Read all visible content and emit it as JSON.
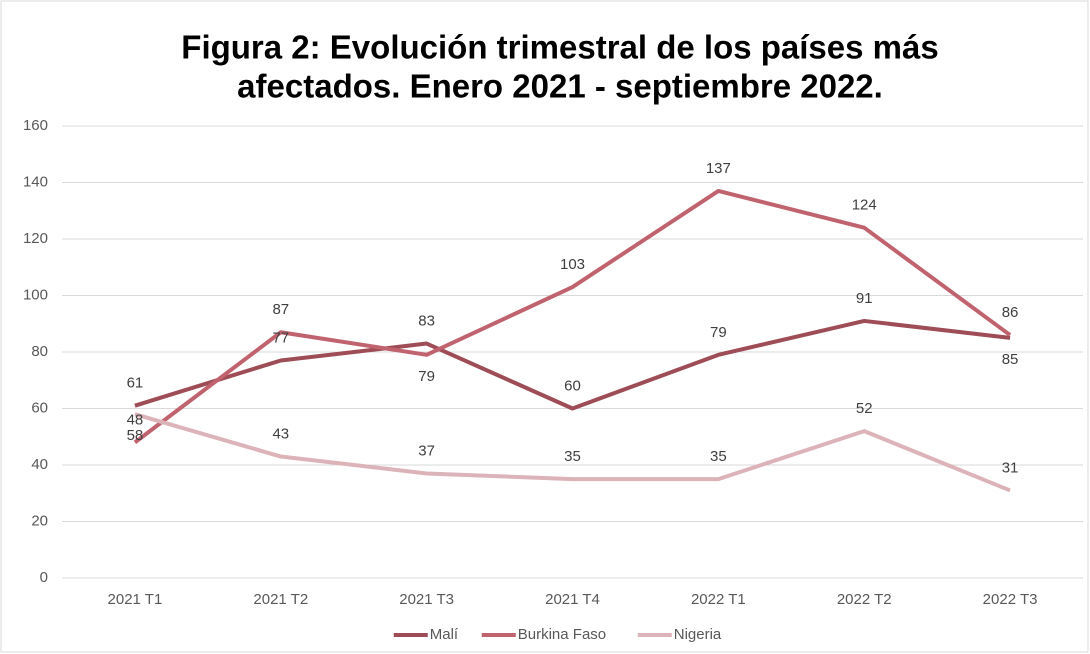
{
  "chart_data": {
    "type": "line",
    "title": [
      "Figura 2: Evolución trimestral de los países más",
      "afectados. Enero 2021 - septiembre 2022."
    ],
    "categories": [
      "2021 T1",
      "2021 T2",
      "2021 T3",
      "2021 T4",
      "2022 T1",
      "2022 T2",
      "2022 T3"
    ],
    "series": [
      {
        "name": "Malí",
        "color": "#9e4c56",
        "values": [
          61,
          77,
          83,
          60,
          79,
          91,
          85
        ]
      },
      {
        "name": "Burkina Faso",
        "color": "#c0636e",
        "values": [
          48,
          87,
          79,
          103,
          137,
          124,
          86
        ]
      },
      {
        "name": "Nigeria",
        "color": "#dcb3b8",
        "values": [
          58,
          43,
          37,
          35,
          35,
          52,
          31
        ]
      }
    ],
    "ylim": [
      0,
      160
    ],
    "yticks": [
      0,
      20,
      40,
      60,
      80,
      100,
      120,
      140,
      160
    ],
    "grid": true,
    "legend": "bottom"
  }
}
